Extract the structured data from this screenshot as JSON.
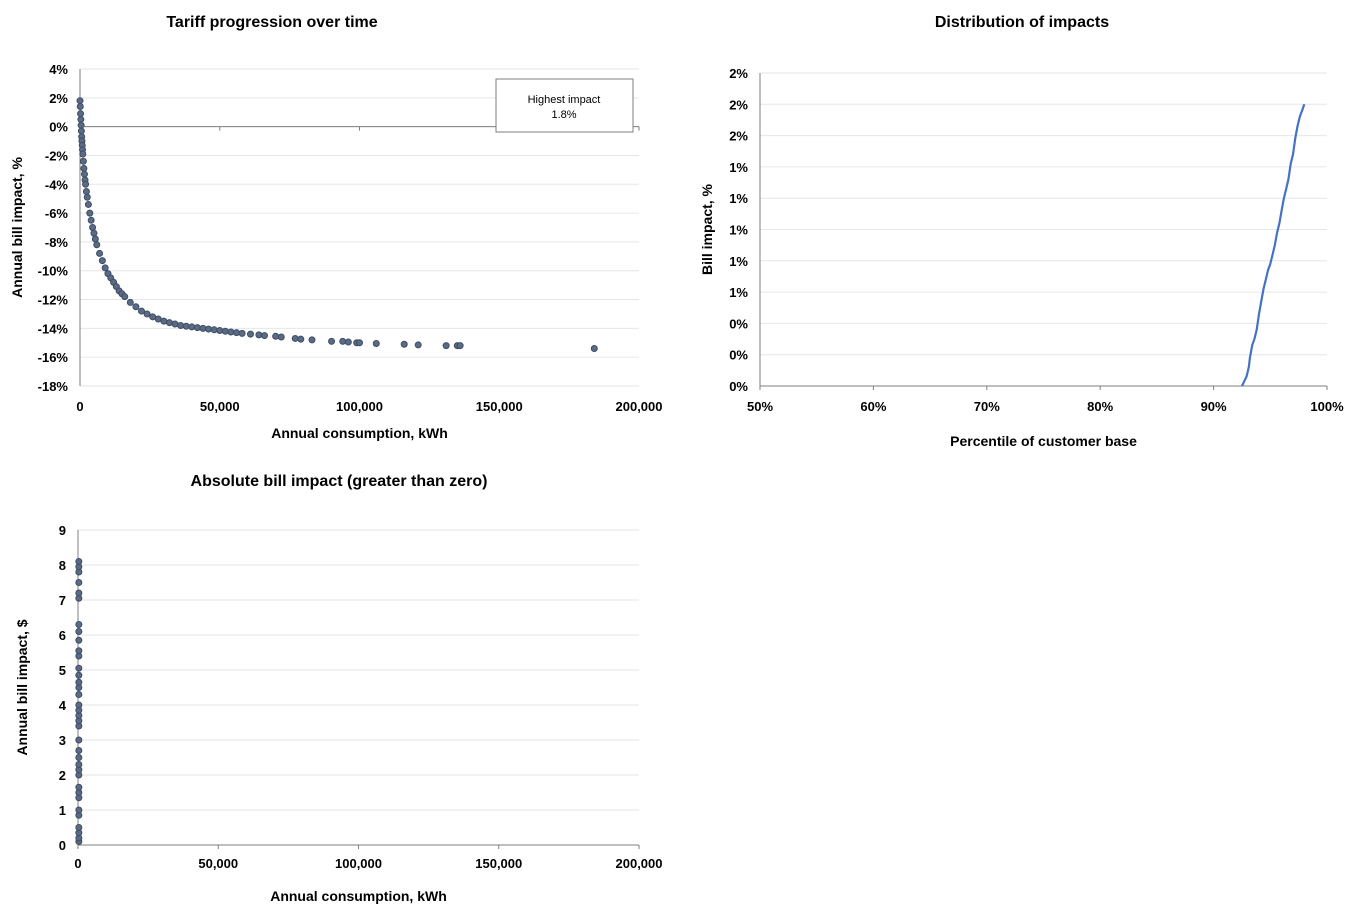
{
  "colors": {
    "marker_fill": "#5a6b85",
    "marker_stroke": "#3f4d63",
    "line": "#4472c4",
    "grid": "#e6e6e6",
    "axis": "#7f7f7f"
  },
  "chart_data": [
    {
      "id": "tariff",
      "type": "scatter",
      "title": "Tariff progression over time",
      "xlabel": "Annual consumption, kWh",
      "ylabel": "Annual bill impact, %",
      "xlim": [
        0,
        200000
      ],
      "ylim": [
        -18,
        4
      ],
      "x_ticks": [
        0,
        50000,
        100000,
        150000,
        200000
      ],
      "x_tick_labels": [
        "0",
        "50,000",
        "100,000",
        "150,000",
        "200,000"
      ],
      "y_ticks": [
        4,
        2,
        0,
        -2,
        -4,
        -6,
        -8,
        -10,
        -12,
        -14,
        -16,
        -18
      ],
      "y_tick_labels": [
        "4%",
        "2%",
        "0%",
        "-2%",
        "-4%",
        "-6%",
        "-8%",
        "-10%",
        "-12%",
        "-14%",
        "-16%",
        "-18%"
      ],
      "grid": true,
      "annotation": {
        "line1": "Highest impact",
        "line2": "1.8%"
      },
      "points": [
        [
          0,
          1.8
        ],
        [
          100,
          1.4
        ],
        [
          200,
          0.9
        ],
        [
          300,
          0.5
        ],
        [
          400,
          0.1
        ],
        [
          500,
          -0.3
        ],
        [
          600,
          -0.7
        ],
        [
          700,
          -1.0
        ],
        [
          800,
          -1.3
        ],
        [
          900,
          -1.6
        ],
        [
          1000,
          -1.9
        ],
        [
          1200,
          -2.4
        ],
        [
          1400,
          -2.9
        ],
        [
          1600,
          -3.3
        ],
        [
          1800,
          -3.7
        ],
        [
          2000,
          -4.0
        ],
        [
          2300,
          -4.5
        ],
        [
          2600,
          -4.9
        ],
        [
          3000,
          -5.4
        ],
        [
          3500,
          -6.0
        ],
        [
          4000,
          -6.5
        ],
        [
          4500,
          -7.0
        ],
        [
          5000,
          -7.4
        ],
        [
          5500,
          -7.8
        ],
        [
          6000,
          -8.2
        ],
        [
          7000,
          -8.8
        ],
        [
          8000,
          -9.3
        ],
        [
          9000,
          -9.8
        ],
        [
          10000,
          -10.2
        ],
        [
          11000,
          -10.5
        ],
        [
          12000,
          -10.8
        ],
        [
          13000,
          -11.1
        ],
        [
          14000,
          -11.4
        ],
        [
          15000,
          -11.6
        ],
        [
          16000,
          -11.8
        ],
        [
          18000,
          -12.2
        ],
        [
          20000,
          -12.5
        ],
        [
          22000,
          -12.8
        ],
        [
          24000,
          -13.0
        ],
        [
          26000,
          -13.2
        ],
        [
          28000,
          -13.35
        ],
        [
          30000,
          -13.5
        ],
        [
          32000,
          -13.6
        ],
        [
          34000,
          -13.7
        ],
        [
          36000,
          -13.8
        ],
        [
          38000,
          -13.85
        ],
        [
          40000,
          -13.9
        ],
        [
          42000,
          -13.95
        ],
        [
          44000,
          -14.0
        ],
        [
          46000,
          -14.05
        ],
        [
          48000,
          -14.1
        ],
        [
          50000,
          -14.15
        ],
        [
          52000,
          -14.2
        ],
        [
          54000,
          -14.25
        ],
        [
          56000,
          -14.3
        ],
        [
          58000,
          -14.35
        ],
        [
          61000,
          -14.4
        ],
        [
          64000,
          -14.45
        ],
        [
          66000,
          -14.5
        ],
        [
          70000,
          -14.55
        ],
        [
          72000,
          -14.6
        ],
        [
          77000,
          -14.7
        ],
        [
          79000,
          -14.75
        ],
        [
          83000,
          -14.8
        ],
        [
          90000,
          -14.9
        ],
        [
          94000,
          -14.9
        ],
        [
          96000,
          -14.95
        ],
        [
          99000,
          -15.0
        ],
        [
          100000,
          -15.0
        ],
        [
          106000,
          -15.05
        ],
        [
          116000,
          -15.1
        ],
        [
          121000,
          -15.15
        ],
        [
          131000,
          -15.2
        ],
        [
          135000,
          -15.2
        ],
        [
          136000,
          -15.2
        ],
        [
          184000,
          -15.4
        ]
      ]
    },
    {
      "id": "distribution",
      "type": "line",
      "title": "Distribution of impacts",
      "xlabel": "Percentile of customer base",
      "ylabel": "Bill impact, %",
      "xlim": [
        0.5,
        1.0
      ],
      "ylim": [
        0,
        2.0
      ],
      "x_ticks": [
        0.5,
        0.6,
        0.7,
        0.8,
        0.9,
        1.0
      ],
      "x_tick_labels": [
        "50%",
        "60%",
        "70%",
        "80%",
        "90%",
        "100%"
      ],
      "y_ticks": [
        2.0,
        1.8,
        1.6,
        1.4,
        1.2,
        1.0,
        0.8,
        0.6,
        0.4,
        0.2,
        0.0
      ],
      "y_tick_labels": [
        "2%",
        "2%",
        "2%",
        "1%",
        "1%",
        "1%",
        "1%",
        "1%",
        "0%",
        "0%",
        "0%"
      ],
      "grid": true,
      "points": [
        [
          0.925,
          0.0
        ],
        [
          0.929,
          0.06
        ],
        [
          0.931,
          0.12
        ],
        [
          0.932,
          0.18
        ],
        [
          0.934,
          0.26
        ],
        [
          0.936,
          0.3
        ],
        [
          0.938,
          0.36
        ],
        [
          0.94,
          0.46
        ],
        [
          0.942,
          0.54
        ],
        [
          0.944,
          0.62
        ],
        [
          0.946,
          0.68
        ],
        [
          0.948,
          0.74
        ],
        [
          0.95,
          0.78
        ],
        [
          0.952,
          0.84
        ],
        [
          0.954,
          0.9
        ],
        [
          0.956,
          0.98
        ],
        [
          0.958,
          1.04
        ],
        [
          0.96,
          1.12
        ],
        [
          0.962,
          1.2
        ],
        [
          0.964,
          1.26
        ],
        [
          0.966,
          1.32
        ],
        [
          0.968,
          1.42
        ],
        [
          0.97,
          1.48
        ],
        [
          0.972,
          1.58
        ],
        [
          0.974,
          1.66
        ],
        [
          0.976,
          1.72
        ],
        [
          0.978,
          1.76
        ],
        [
          0.98,
          1.8
        ]
      ]
    },
    {
      "id": "absolute",
      "type": "scatter",
      "title": "Absolute bill impact (greater than zero)",
      "xlabel": "Annual consumption, kWh",
      "ylabel": "Annual bill impact, $",
      "xlim": [
        0,
        200000
      ],
      "ylim": [
        0,
        9
      ],
      "x_ticks": [
        0,
        50000,
        100000,
        150000,
        200000
      ],
      "x_tick_labels": [
        "0",
        "50,000",
        "100,000",
        "150,000",
        "200,000"
      ],
      "y_ticks": [
        9,
        8,
        7,
        6,
        5,
        4,
        3,
        2,
        1,
        0
      ],
      "y_tick_labels": [
        "9",
        "8",
        "7",
        "6",
        "5",
        "4",
        "3",
        "2",
        "1",
        "0"
      ],
      "grid": true,
      "points": [
        [
          300,
          0.1
        ],
        [
          300,
          0.2
        ],
        [
          300,
          0.35
        ],
        [
          300,
          0.5
        ],
        [
          300,
          0.85
        ],
        [
          300,
          1.0
        ],
        [
          300,
          1.35
        ],
        [
          300,
          1.5
        ],
        [
          300,
          1.65
        ],
        [
          300,
          2.0
        ],
        [
          300,
          2.15
        ],
        [
          300,
          2.3
        ],
        [
          300,
          2.5
        ],
        [
          300,
          2.7
        ],
        [
          300,
          3.0
        ],
        [
          300,
          3.4
        ],
        [
          300,
          3.55
        ],
        [
          300,
          3.7
        ],
        [
          300,
          3.85
        ],
        [
          300,
          4.0
        ],
        [
          300,
          4.3
        ],
        [
          300,
          4.5
        ],
        [
          300,
          4.65
        ],
        [
          300,
          4.85
        ],
        [
          300,
          5.05
        ],
        [
          300,
          5.4
        ],
        [
          300,
          5.55
        ],
        [
          300,
          5.85
        ],
        [
          300,
          6.1
        ],
        [
          300,
          6.3
        ],
        [
          300,
          7.05
        ],
        [
          300,
          7.2
        ],
        [
          300,
          7.5
        ],
        [
          300,
          7.8
        ],
        [
          300,
          7.95
        ],
        [
          300,
          8.1
        ]
      ]
    }
  ]
}
